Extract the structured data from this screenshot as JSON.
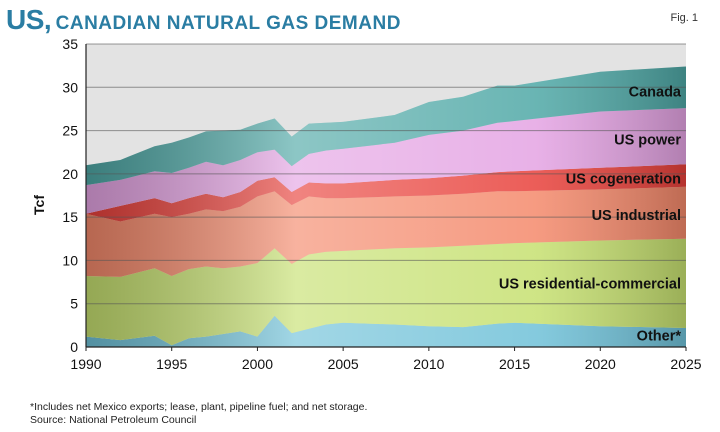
{
  "header": {
    "title_main": "US,",
    "title_rest": "CANADIAN NATURAL GAS DEMAND",
    "fig_label": "Fig. 1"
  },
  "footnotes": {
    "note": "*Includes net Mexico exports; lease, plant, pipeline fuel; and net storage.",
    "source": "Source: National Petroleum Council"
  },
  "chart_data": {
    "type": "area",
    "stacked": true,
    "title": "US, Canadian natural gas demand",
    "ylabel": "Tcf",
    "xlabel": "",
    "xlim": [
      1990,
      2025
    ],
    "ylim": [
      0,
      35
    ],
    "xticks": [
      1990,
      1995,
      2000,
      2005,
      2010,
      2015,
      2020,
      2025
    ],
    "yticks": [
      0,
      5,
      10,
      15,
      20,
      25,
      30,
      35
    ],
    "grid": "horizontal",
    "x": [
      1990,
      1992,
      1994,
      1995,
      1996,
      1997,
      1998,
      1999,
      2000,
      2001,
      2002,
      2003,
      2004,
      2005,
      2008,
      2010,
      2012,
      2014,
      2015,
      2020,
      2025
    ],
    "series": [
      {
        "name": "Other*",
        "label": "Other*",
        "color": "#6fc1d8",
        "values": [
          1.2,
          0.8,
          1.3,
          0.2,
          1.0,
          1.2,
          1.5,
          1.8,
          1.2,
          3.6,
          1.6,
          2.1,
          2.6,
          2.8,
          2.6,
          2.4,
          2.3,
          2.7,
          2.8,
          2.4,
          2.2
        ]
      },
      {
        "name": "US residential-commercial",
        "label": "US residential-commercial",
        "color": "#c6e070",
        "values": [
          7.0,
          7.3,
          7.8,
          8.0,
          8.0,
          8.1,
          7.6,
          7.5,
          8.5,
          7.8,
          8.0,
          8.6,
          8.4,
          8.3,
          8.8,
          9.1,
          9.4,
          9.2,
          9.2,
          9.9,
          10.3
        ]
      },
      {
        "name": "US industrial",
        "label": "US industrial",
        "color": "#f4896b",
        "values": [
          7.2,
          6.4,
          6.3,
          6.8,
          6.4,
          6.6,
          6.6,
          6.9,
          7.7,
          6.6,
          6.8,
          6.7,
          6.2,
          6.1,
          6.0,
          6.0,
          6.0,
          6.1,
          6.0,
          5.9,
          6.0
        ]
      },
      {
        "name": "US cogeneration",
        "label": "US cogeneration",
        "color": "#e8413b",
        "values": [
          0.0,
          1.8,
          1.8,
          1.6,
          1.8,
          1.8,
          1.6,
          1.7,
          1.8,
          1.6,
          1.5,
          1.6,
          1.7,
          1.7,
          1.9,
          2.0,
          2.1,
          2.2,
          2.3,
          2.5,
          2.6
        ]
      },
      {
        "name": "US power",
        "label": "US power",
        "color": "#e4a3e3",
        "values": [
          3.3,
          3.0,
          3.1,
          3.5,
          3.5,
          3.7,
          3.7,
          3.7,
          3.3,
          3.2,
          3.0,
          3.3,
          3.8,
          4.0,
          4.3,
          5.0,
          5.2,
          5.7,
          5.8,
          6.5,
          6.5
        ]
      },
      {
        "name": "Canada",
        "label": "Canada",
        "color": "#4fa8a6",
        "values": [
          2.3,
          2.3,
          2.9,
          3.5,
          3.5,
          3.5,
          4.0,
          3.5,
          3.3,
          3.6,
          3.4,
          3.5,
          3.2,
          3.1,
          3.2,
          3.8,
          3.9,
          4.3,
          4.1,
          4.6,
          4.8
        ]
      }
    ]
  }
}
